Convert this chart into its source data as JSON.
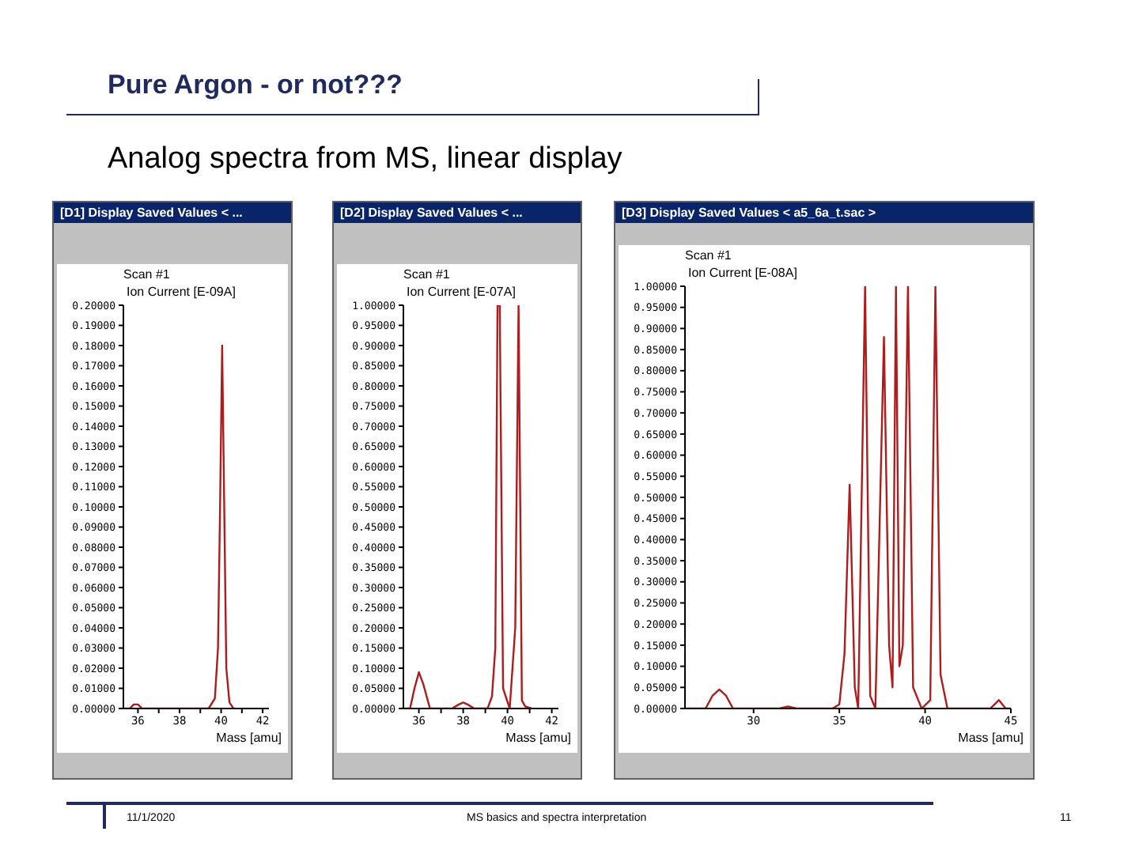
{
  "chart_data": [
    {
      "type": "line",
      "title": "[D1] Display Saved Values < ...",
      "subtitle": "Scan #1",
      "ylabel": "Ion Current [E-09A]",
      "xlabel": "Mass [amu]",
      "annotations": [
        "Pure Argon - or not???",
        "Analog spectra from MS, linear display",
        "11/1/2020",
        "MS basics and spectra interpretation",
        "11"
      ],
      "x": [
        35.3,
        35.6,
        35.8,
        36,
        36.2,
        36.5,
        39.4,
        39.7,
        39.85,
        39.95,
        40.05,
        40.15,
        40.25,
        40.4,
        40.6
      ],
      "series": [
        {
          "color": "#b01c1c",
          "values": [
            0,
            0,
            0.002,
            0.002,
            0,
            0,
            0,
            0.005,
            0.03,
            0.1,
            0.18,
            0.1,
            0.02,
            0.003,
            0
          ]
        }
      ],
      "xlim": [
        35.3,
        42.3
      ],
      "xticks": [
        36,
        {
          "value": 37,
          "label": null
        },
        38,
        {
          "value": 39,
          "label": null
        },
        40,
        {
          "value": 41,
          "label": null
        },
        42
      ],
      "ylim": [
        0,
        0.2
      ],
      "yticks": [
        {
          "value": 0,
          "label": "0.00000"
        },
        {
          "value": 0.01,
          "label": "0.01000"
        },
        {
          "value": 0.02,
          "label": "0.02000"
        },
        {
          "value": 0.03,
          "label": "0.03000"
        },
        {
          "value": 0.04,
          "label": "0.04000"
        },
        {
          "value": 0.05,
          "label": "0.05000"
        },
        {
          "value": 0.06,
          "label": "0.06000"
        },
        {
          "value": 0.07,
          "label": "0.07000"
        },
        {
          "value": 0.08,
          "label": "0.08000"
        },
        {
          "value": 0.09,
          "label": "0.09000"
        },
        {
          "value": 0.1,
          "label": "0.10000"
        },
        {
          "value": 0.11,
          "label": "0.11000"
        },
        {
          "value": 0.12,
          "label": "0.12000"
        },
        {
          "value": 0.13,
          "label": "0.13000"
        },
        {
          "value": 0.14,
          "label": "0.14000"
        },
        {
          "value": 0.15,
          "label": "0.15000"
        },
        {
          "value": 0.16,
          "label": "0.16000"
        },
        {
          "value": 0.17,
          "label": "0.17000"
        },
        {
          "value": 0.18,
          "label": "0.18000"
        },
        {
          "value": 0.19,
          "label": "0.19000"
        },
        {
          "value": 0.2,
          "label": "0.20000"
        }
      ]
    },
    {
      "type": "line",
      "title": "[D2] Display Saved Values < ...",
      "subtitle": "Scan #1",
      "ylabel": "Ion Current [E-07A]",
      "xlabel": "Mass [amu]",
      "x": [
        35.3,
        35.6,
        35.8,
        36,
        36.2,
        36.5,
        37.5,
        37.8,
        38,
        38.2,
        38.5,
        39.1,
        39.3,
        39.45,
        39.55,
        39.65,
        39.8,
        40.1,
        40.35,
        40.5,
        40.65,
        40.8,
        41.1
      ],
      "series": [
        {
          "color": "#b01c1c",
          "values": [
            0,
            0,
            0.05,
            0.09,
            0.06,
            0,
            0,
            0.01,
            0.015,
            0.01,
            0,
            0,
            0.03,
            0.15,
            1,
            1,
            0.05,
            0,
            0.2,
            1,
            0.02,
            0.005,
            0
          ]
        }
      ],
      "xlim": [
        35.3,
        42.3
      ],
      "xticks": [
        36,
        {
          "value": 37,
          "label": null
        },
        38,
        {
          "value": 39,
          "label": null
        },
        40,
        {
          "value": 41,
          "label": null
        },
        42
      ],
      "ylim": [
        0,
        1
      ],
      "yticks": [
        {
          "value": 0,
          "label": "0.00000"
        },
        {
          "value": 0.05,
          "label": "0.05000"
        },
        {
          "value": 0.1,
          "label": "0.10000"
        },
        {
          "value": 0.15,
          "label": "0.15000"
        },
        {
          "value": 0.2,
          "label": "0.20000"
        },
        {
          "value": 0.25,
          "label": "0.25000"
        },
        {
          "value": 0.3,
          "label": "0.30000"
        },
        {
          "value": 0.35,
          "label": "0.35000"
        },
        {
          "value": 0.4,
          "label": "0.40000"
        },
        {
          "value": 0.45,
          "label": "0.45000"
        },
        {
          "value": 0.5,
          "label": "0.50000"
        },
        {
          "value": 0.55,
          "label": "0.55000"
        },
        {
          "value": 0.6,
          "label": "0.60000"
        },
        {
          "value": 0.65,
          "label": "0.65000"
        },
        {
          "value": 0.7,
          "label": "0.70000"
        },
        {
          "value": 0.75,
          "label": "0.75000"
        },
        {
          "value": 0.8,
          "label": "0.80000"
        },
        {
          "value": 0.85,
          "label": "0.85000"
        },
        {
          "value": 0.9,
          "label": "0.90000"
        },
        {
          "value": 0.95,
          "label": "0.95000"
        },
        {
          "value": 1,
          "label": "1.00000"
        }
      ]
    },
    {
      "type": "line",
      "title": "[D3] Display Saved Values < a5_6a_t.sac >",
      "subtitle": "Scan #1",
      "ylabel": "Ion Current [E-08A]",
      "xlabel": "Mass [amu]",
      "x": [
        26,
        27.2,
        27.6,
        28,
        28.4,
        28.8,
        31.5,
        32,
        32.5,
        34.6,
        35,
        35.3,
        35.6,
        35.9,
        36.1,
        36.5,
        36.8,
        37.1,
        37.6,
        37.9,
        38.1,
        38.3,
        38.5,
        38.7,
        39,
        39.3,
        39.8,
        40.3,
        40.6,
        40.9,
        41.3,
        43.8,
        44.3,
        44.7,
        45
      ],
      "series": [
        {
          "color": "#b01c1c",
          "values": [
            0,
            0,
            0.03,
            0.045,
            0.03,
            0,
            0,
            0.005,
            0,
            0,
            0.01,
            0.13,
            0.53,
            0.05,
            0,
            1,
            0.03,
            0,
            0.88,
            0.15,
            0.05,
            1,
            0.1,
            0.15,
            1,
            0.05,
            0,
            0.02,
            1,
            0.08,
            0,
            0,
            0.02,
            0,
            0
          ]
        }
      ],
      "xlim": [
        26,
        45
      ],
      "xticks": [
        30,
        35,
        40,
        45
      ],
      "ylim": [
        0,
        1
      ],
      "yticks": [
        {
          "value": 0,
          "label": "0.00000"
        },
        {
          "value": 0.05,
          "label": "0.05000"
        },
        {
          "value": 0.1,
          "label": "0.10000"
        },
        {
          "value": 0.15,
          "label": "0.15000"
        },
        {
          "value": 0.2,
          "label": "0.20000"
        },
        {
          "value": 0.25,
          "label": "0.25000"
        },
        {
          "value": 0.3,
          "label": "0.30000"
        },
        {
          "value": 0.35,
          "label": "0.35000"
        },
        {
          "value": 0.4,
          "label": "0.40000"
        },
        {
          "value": 0.45,
          "label": "0.45000"
        },
        {
          "value": 0.5,
          "label": "0.50000"
        },
        {
          "value": 0.55,
          "label": "0.55000"
        },
        {
          "value": 0.6,
          "label": "0.60000"
        },
        {
          "value": 0.65,
          "label": "0.65000"
        },
        {
          "value": 0.7,
          "label": "0.70000"
        },
        {
          "value": 0.75,
          "label": "0.75000"
        },
        {
          "value": 0.8,
          "label": "0.80000"
        },
        {
          "value": 0.85,
          "label": "0.85000"
        },
        {
          "value": 0.9,
          "label": "0.90000"
        },
        {
          "value": 0.95,
          "label": "0.95000"
        },
        {
          "value": 1,
          "label": "1.00000"
        }
      ]
    }
  ]
}
